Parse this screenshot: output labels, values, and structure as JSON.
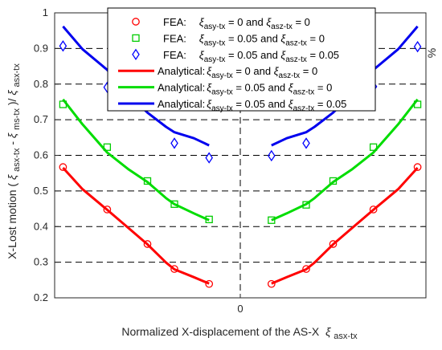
{
  "chart_data": {
    "type": "line",
    "xlabel": "Normalized X-displacement of the AS-X",
    "xlabel_symbol": "ξ",
    "xlabel_symbol_sub": "asx-tx",
    "ylabel_prefix": "X-Lost motion (",
    "ylabel_symbol_1": "ξ",
    "ylabel_sub_1": "asx-tx",
    "ylabel_minus": "-",
    "ylabel_symbol_2": "ξ",
    "ylabel_sub_2": "ms-tx",
    "ylabel_mid": ")/",
    "ylabel_symbol_3": "ξ",
    "ylabel_sub_3": "asx-tx",
    "y_unit": "%",
    "ylim": [
      0.2,
      1.0
    ],
    "xlim": [
      -1.0,
      1.0
    ],
    "x_tick_labels": [
      "0"
    ],
    "y_tick_labels": [
      "0.2",
      "0.3",
      "0.4",
      "0.5",
      "0.6",
      "0.7",
      "0.8",
      "0.9",
      "1"
    ],
    "grid": "dashed horizontal lines and a dashed vertical line at x = 0",
    "legend_position": "top-center",
    "series": [
      {
        "legend_prefix": "FEA:",
        "legend_p1": "asy-tx",
        "legend_v1": "= 0",
        "legend_p2": "asz-tx",
        "legend_v2": "= 0",
        "kind": "marker",
        "marker": "circle",
        "color": "#ff0000",
        "points": [
          [
            -0.955,
            0.567
          ],
          [
            -0.717,
            0.448
          ],
          [
            -0.5,
            0.351
          ],
          [
            -0.355,
            0.281
          ],
          [
            -0.168,
            0.239
          ],
          [
            0.168,
            0.239
          ],
          [
            0.355,
            0.281
          ],
          [
            0.5,
            0.351
          ],
          [
            0.717,
            0.448
          ],
          [
            0.955,
            0.567
          ]
        ]
      },
      {
        "legend_prefix": "FEA:",
        "legend_p1": "asy-tx",
        "legend_v1": "= 0.05",
        "legend_p2": "asz-tx",
        "legend_v2": "= 0",
        "kind": "marker",
        "marker": "square",
        "color": "#00cc00",
        "points": [
          [
            -0.955,
            0.743
          ],
          [
            -0.717,
            0.623
          ],
          [
            -0.5,
            0.528
          ],
          [
            -0.355,
            0.463
          ],
          [
            -0.168,
            0.42
          ],
          [
            0.168,
            0.418
          ],
          [
            0.355,
            0.461
          ],
          [
            0.5,
            0.528
          ],
          [
            0.717,
            0.623
          ],
          [
            0.955,
            0.743
          ]
        ]
      },
      {
        "legend_prefix": "FEA:",
        "legend_p1": "asy-tx",
        "legend_v1": "= 0.05 and",
        "legend_p2": "asz-tx",
        "legend_v2": "= 0.05",
        "kind": "marker",
        "marker": "diamond",
        "color": "#0000ff",
        "points": [
          [
            -0.955,
            0.907
          ],
          [
            -0.717,
            0.791
          ],
          [
            -0.355,
            0.634
          ],
          [
            -0.168,
            0.593
          ],
          [
            0.168,
            0.599
          ],
          [
            0.355,
            0.634
          ],
          [
            0.717,
            0.793
          ],
          [
            0.955,
            0.905
          ]
        ]
      },
      {
        "legend_prefix": "Analytical:",
        "legend_p1": "asy-tx",
        "legend_v1": "= 0",
        "legend_p2": "asz-tx",
        "legend_v2": "= 0",
        "kind": "line",
        "color": "#ff0000",
        "left": [
          [
            -0.955,
            0.565
          ],
          [
            -0.85,
            0.505
          ],
          [
            -0.717,
            0.447
          ],
          [
            -0.6,
            0.395
          ],
          [
            -0.5,
            0.35
          ],
          [
            -0.4,
            0.299
          ],
          [
            -0.355,
            0.28
          ],
          [
            -0.25,
            0.258
          ],
          [
            -0.168,
            0.24
          ]
        ],
        "right": [
          [
            0.168,
            0.24
          ],
          [
            0.25,
            0.258
          ],
          [
            0.355,
            0.28
          ],
          [
            0.4,
            0.299
          ],
          [
            0.5,
            0.35
          ],
          [
            0.6,
            0.395
          ],
          [
            0.717,
            0.447
          ],
          [
            0.85,
            0.505
          ],
          [
            0.955,
            0.565
          ]
        ]
      },
      {
        "legend_prefix": "Analytical:",
        "legend_p1": "asy-tx",
        "legend_v1": "= 0.05",
        "legend_p2": "asz-tx",
        "legend_v2": "= 0",
        "kind": "line",
        "color": "#00dd00",
        "left": [
          [
            -0.955,
            0.757
          ],
          [
            -0.85,
            0.687
          ],
          [
            -0.717,
            0.608
          ],
          [
            -0.6,
            0.56
          ],
          [
            -0.5,
            0.525
          ],
          [
            -0.4,
            0.48
          ],
          [
            -0.355,
            0.463
          ],
          [
            -0.25,
            0.437
          ],
          [
            -0.168,
            0.418
          ]
        ],
        "right": [
          [
            0.168,
            0.418
          ],
          [
            0.25,
            0.437
          ],
          [
            0.355,
            0.463
          ],
          [
            0.4,
            0.48
          ],
          [
            0.5,
            0.525
          ],
          [
            0.6,
            0.56
          ],
          [
            0.717,
            0.608
          ],
          [
            0.85,
            0.687
          ],
          [
            0.955,
            0.757
          ]
        ]
      },
      {
        "legend_prefix": "Analytical:",
        "legend_p1": "asy-tx",
        "legend_v1": "= 0.05 and",
        "legend_p2": "asz-tx",
        "legend_v2": "= 0.05",
        "kind": "line",
        "color": "#0000ee",
        "left": [
          [
            -0.955,
            0.962
          ],
          [
            -0.85,
            0.898
          ],
          [
            -0.717,
            0.84
          ],
          [
            -0.6,
            0.77
          ],
          [
            -0.5,
            0.72
          ],
          [
            -0.4,
            0.68
          ],
          [
            -0.355,
            0.665
          ],
          [
            -0.25,
            0.648
          ],
          [
            -0.168,
            0.628
          ]
        ],
        "right": [
          [
            0.168,
            0.628
          ],
          [
            0.25,
            0.648
          ],
          [
            0.355,
            0.665
          ],
          [
            0.4,
            0.68
          ],
          [
            0.5,
            0.72
          ],
          [
            0.6,
            0.77
          ],
          [
            0.717,
            0.84
          ],
          [
            0.85,
            0.898
          ],
          [
            0.955,
            0.962
          ]
        ]
      }
    ]
  }
}
